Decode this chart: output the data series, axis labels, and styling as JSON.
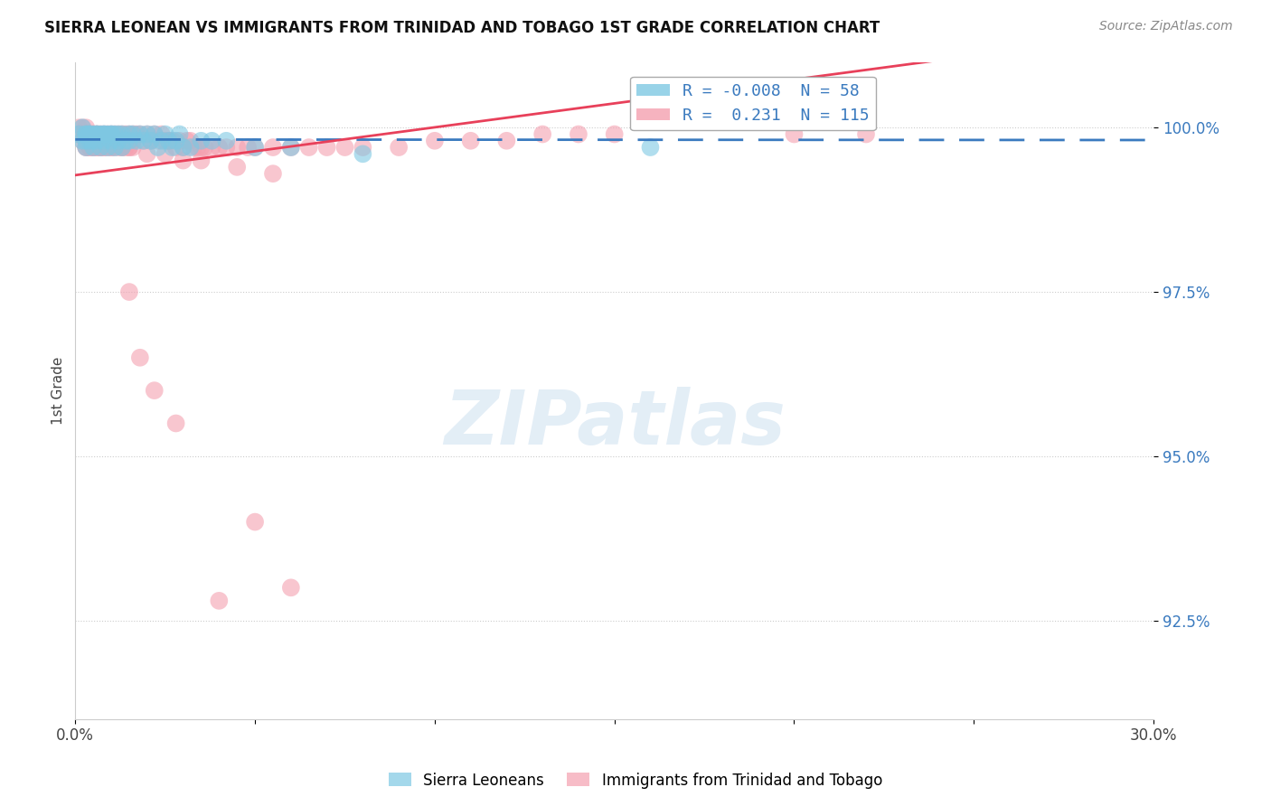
{
  "title": "SIERRA LEONEAN VS IMMIGRANTS FROM TRINIDAD AND TOBAGO 1ST GRADE CORRELATION CHART",
  "source": "Source: ZipAtlas.com",
  "ylabel": "1st Grade",
  "ytick_values": [
    0.925,
    0.95,
    0.975,
    1.0
  ],
  "ytick_labels": [
    "92.5%",
    "95.0%",
    "97.5%",
    "100.0%"
  ],
  "xlim": [
    0.0,
    0.3
  ],
  "ylim": [
    0.91,
    1.01
  ],
  "blue_color": "#7ec8e3",
  "pink_color": "#f4a0b0",
  "blue_line_color": "#3a7abf",
  "pink_line_color": "#e8405a",
  "grid_color": "#cccccc",
  "background_color": "#ffffff",
  "legend_R_blue": "-0.008",
  "legend_N_blue": "58",
  "legend_R_pink": "0.231",
  "legend_N_pink": "115",
  "blue_scatter_x": [
    0.001,
    0.002,
    0.002,
    0.003,
    0.003,
    0.003,
    0.004,
    0.004,
    0.005,
    0.005,
    0.005,
    0.006,
    0.006,
    0.007,
    0.007,
    0.008,
    0.008,
    0.009,
    0.009,
    0.01,
    0.01,
    0.011,
    0.011,
    0.012,
    0.012,
    0.013,
    0.013,
    0.014,
    0.015,
    0.015,
    0.016,
    0.017,
    0.018,
    0.019,
    0.02,
    0.021,
    0.022,
    0.023,
    0.024,
    0.025,
    0.026,
    0.027,
    0.028,
    0.029,
    0.03,
    0.032,
    0.035,
    0.038,
    0.042,
    0.05,
    0.003,
    0.004,
    0.006,
    0.008,
    0.01,
    0.06,
    0.08,
    0.16
  ],
  "blue_scatter_y": [
    0.999,
    0.998,
    1.0,
    0.999,
    0.998,
    0.997,
    0.999,
    0.998,
    0.999,
    0.998,
    0.997,
    0.999,
    0.998,
    0.999,
    0.997,
    0.999,
    0.998,
    0.999,
    0.997,
    0.999,
    0.998,
    0.999,
    0.997,
    0.999,
    0.998,
    0.999,
    0.997,
    0.998,
    0.999,
    0.998,
    0.999,
    0.998,
    0.999,
    0.998,
    0.999,
    0.998,
    0.999,
    0.997,
    0.998,
    0.999,
    0.998,
    0.997,
    0.998,
    0.999,
    0.997,
    0.997,
    0.998,
    0.998,
    0.998,
    0.997,
    0.999,
    0.999,
    0.999,
    0.999,
    0.999,
    0.997,
    0.996,
    0.997
  ],
  "pink_scatter_x": [
    0.001,
    0.001,
    0.002,
    0.002,
    0.002,
    0.003,
    0.003,
    0.003,
    0.003,
    0.004,
    0.004,
    0.004,
    0.005,
    0.005,
    0.005,
    0.006,
    0.006,
    0.006,
    0.007,
    0.007,
    0.007,
    0.008,
    0.008,
    0.008,
    0.009,
    0.009,
    0.01,
    0.01,
    0.01,
    0.011,
    0.011,
    0.012,
    0.012,
    0.013,
    0.013,
    0.014,
    0.014,
    0.015,
    0.015,
    0.016,
    0.016,
    0.017,
    0.018,
    0.019,
    0.02,
    0.021,
    0.022,
    0.023,
    0.024,
    0.025,
    0.026,
    0.027,
    0.028,
    0.029,
    0.03,
    0.031,
    0.032,
    0.033,
    0.034,
    0.035,
    0.036,
    0.038,
    0.04,
    0.042,
    0.045,
    0.048,
    0.05,
    0.055,
    0.06,
    0.065,
    0.07,
    0.075,
    0.08,
    0.09,
    0.1,
    0.11,
    0.12,
    0.13,
    0.14,
    0.15,
    0.003,
    0.004,
    0.005,
    0.006,
    0.007,
    0.008,
    0.009,
    0.01,
    0.011,
    0.012,
    0.013,
    0.014,
    0.015,
    0.016,
    0.025,
    0.035,
    0.045,
    0.055,
    0.02,
    0.03,
    0.001,
    0.002,
    0.003,
    0.004,
    0.005,
    0.006,
    0.05,
    0.06,
    0.2,
    0.22,
    0.015,
    0.018,
    0.022,
    0.028,
    0.04
  ],
  "pink_scatter_y": [
    0.999,
    1.0,
    0.999,
    0.998,
    1.0,
    0.999,
    0.998,
    0.997,
    1.0,
    0.999,
    0.998,
    0.997,
    0.999,
    0.998,
    0.997,
    0.999,
    0.998,
    0.997,
    0.999,
    0.998,
    0.997,
    0.999,
    0.998,
    0.997,
    0.999,
    0.998,
    0.999,
    0.998,
    0.997,
    0.999,
    0.998,
    0.999,
    0.998,
    0.999,
    0.997,
    0.999,
    0.998,
    0.999,
    0.997,
    0.999,
    0.998,
    0.999,
    0.999,
    0.998,
    0.999,
    0.998,
    0.999,
    0.998,
    0.999,
    0.998,
    0.998,
    0.998,
    0.997,
    0.998,
    0.997,
    0.998,
    0.998,
    0.997,
    0.997,
    0.997,
    0.997,
    0.997,
    0.997,
    0.997,
    0.997,
    0.997,
    0.997,
    0.997,
    0.997,
    0.997,
    0.997,
    0.997,
    0.997,
    0.997,
    0.998,
    0.998,
    0.998,
    0.999,
    0.999,
    0.999,
    0.997,
    0.997,
    0.997,
    0.997,
    0.997,
    0.997,
    0.997,
    0.997,
    0.997,
    0.997,
    0.997,
    0.997,
    0.997,
    0.997,
    0.996,
    0.995,
    0.994,
    0.993,
    0.996,
    0.995,
    0.999,
    0.999,
    0.999,
    0.999,
    0.999,
    0.999,
    0.94,
    0.93,
    0.999,
    0.999,
    0.975,
    0.965,
    0.96,
    0.955,
    0.928
  ]
}
